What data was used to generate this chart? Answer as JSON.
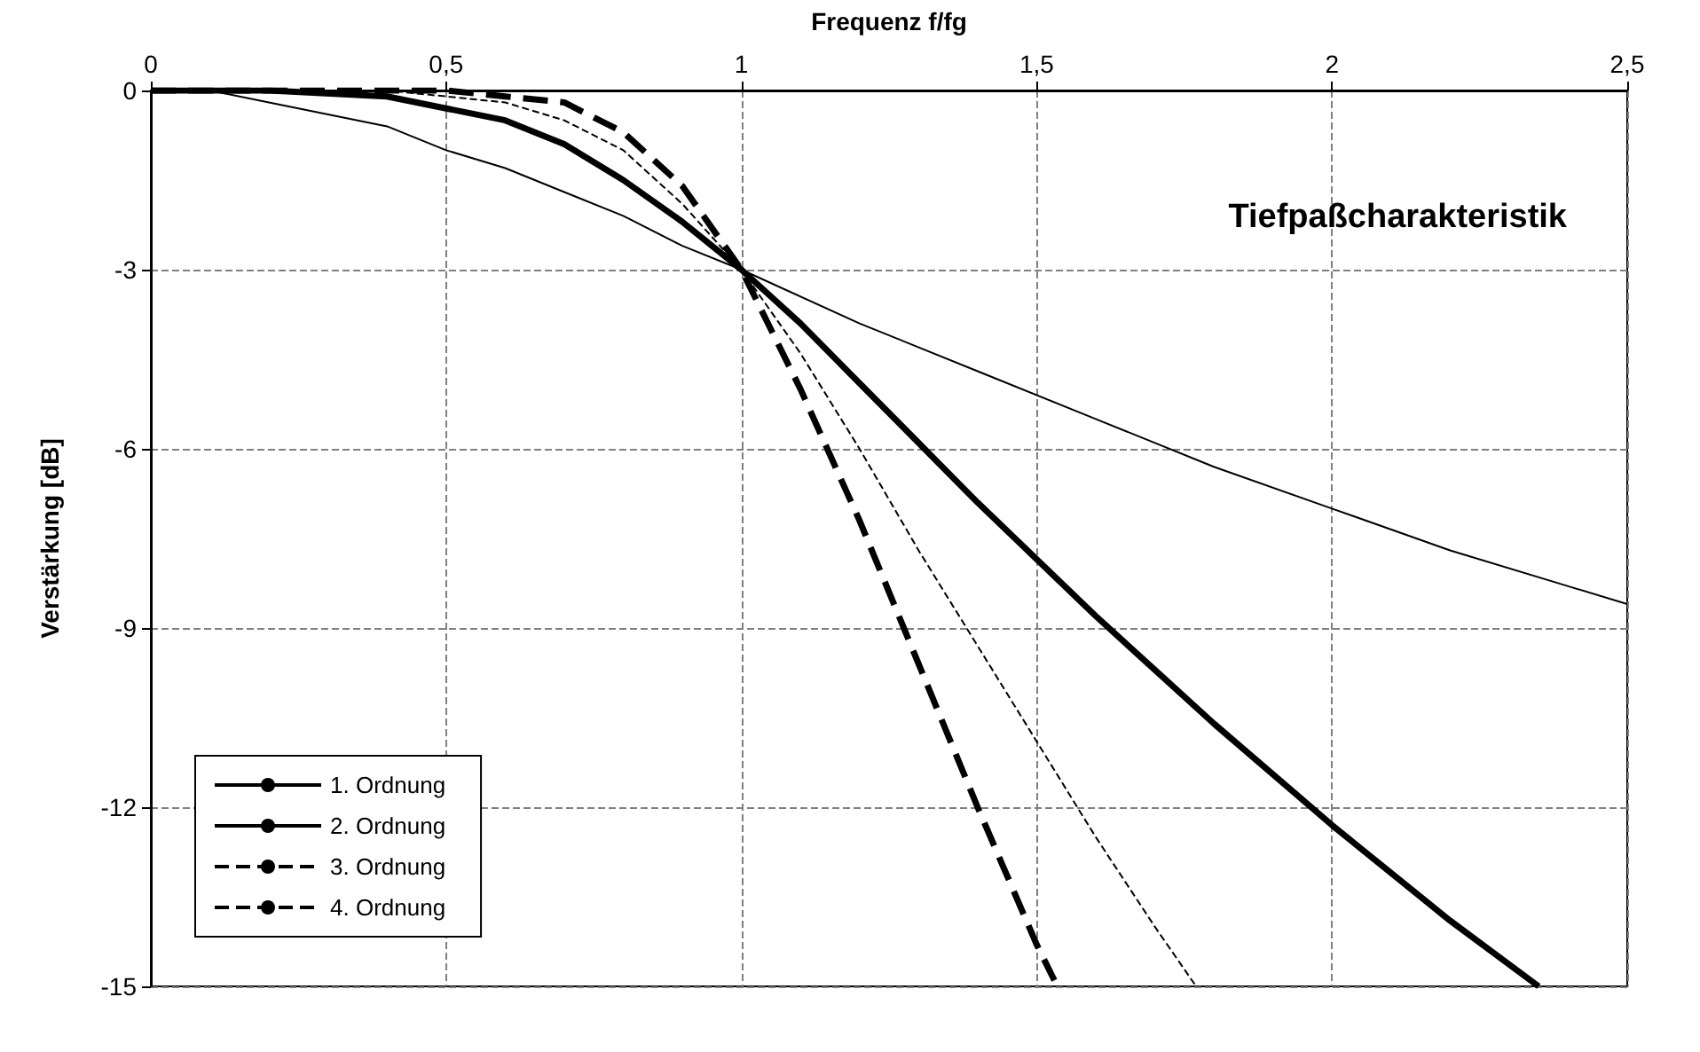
{
  "chart_data": {
    "type": "line",
    "title": "Tiefpaßcharakteristik",
    "xlabel": "Frequenz f/fg",
    "ylabel": "Verstärkung [dB]",
    "xlim": [
      0,
      2.5
    ],
    "xticks": [
      0,
      {
        "value": 0.5,
        "label": "0,5"
      },
      1,
      {
        "value": 1.5,
        "label": "1,5"
      },
      2,
      {
        "value": 2.5,
        "label": "2,5"
      }
    ],
    "ylim": [
      -15,
      0
    ],
    "yticks": [
      -15,
      -12,
      -9,
      -6,
      -3,
      0
    ],
    "grid": true,
    "legend": "bottom left",
    "marker": "none",
    "series": [
      {
        "name": "1. Ordnung",
        "color": "#000000",
        "line_style": "solid",
        "x": [
          0,
          0.1,
          0.2,
          0.3,
          0.4,
          0.5,
          0.6,
          0.7,
          0.8,
          0.9,
          1,
          1.2,
          1.4,
          1.6,
          1.8,
          2,
          2.2,
          2.4,
          2.5
        ],
        "values": [
          0,
          0,
          -0.2,
          -0.4,
          -0.6,
          -1,
          -1.3,
          -1.7,
          -2.1,
          -2.6,
          -3,
          -3.9,
          -4.7,
          -5.5,
          -6.3,
          -7,
          -7.7,
          -8.3,
          -8.6
        ]
      },
      {
        "name": "2. Ordnung",
        "color": "#000000",
        "line_style": "solid",
        "x": [
          0,
          0.2,
          0.4,
          0.5,
          0.6,
          0.7,
          0.8,
          0.9,
          1,
          1.1,
          1.2,
          1.3,
          1.4,
          1.6,
          1.8,
          2,
          2.2,
          2.35
        ],
        "values": [
          0,
          0,
          -0.1,
          -0.3,
          -0.5,
          -0.9,
          -1.5,
          -2.2,
          -3,
          -3.9,
          -4.9,
          -5.9,
          -6.9,
          -8.8,
          -10.6,
          -12.3,
          -13.9,
          -15
        ]
      },
      {
        "name": "3. Ordnung",
        "color": "#000000",
        "line_style": "dashed",
        "x": [
          0,
          0.4,
          0.5,
          0.6,
          0.7,
          0.8,
          0.9,
          1,
          1.1,
          1.2,
          1.3,
          1.4,
          1.5,
          1.6,
          1.7,
          1.77
        ],
        "values": [
          0,
          0,
          -0.1,
          -0.2,
          -0.5,
          -1,
          -1.9,
          -3,
          -4.4,
          -6,
          -7.7,
          -9.3,
          -10.9,
          -12.5,
          -14,
          -15
        ]
      },
      {
        "name": "4. Ordnung",
        "color": "#000000",
        "line_style": "dashed",
        "x": [
          0,
          0.5,
          0.6,
          0.7,
          0.8,
          0.9,
          1,
          1.1,
          1.2,
          1.3,
          1.4,
          1.5,
          1.53
        ],
        "values": [
          0,
          0,
          -0.1,
          -0.2,
          -0.7,
          -1.6,
          -3,
          -5,
          -7.2,
          -9.6,
          -12,
          -14.3,
          -14.9
        ]
      }
    ]
  }
}
